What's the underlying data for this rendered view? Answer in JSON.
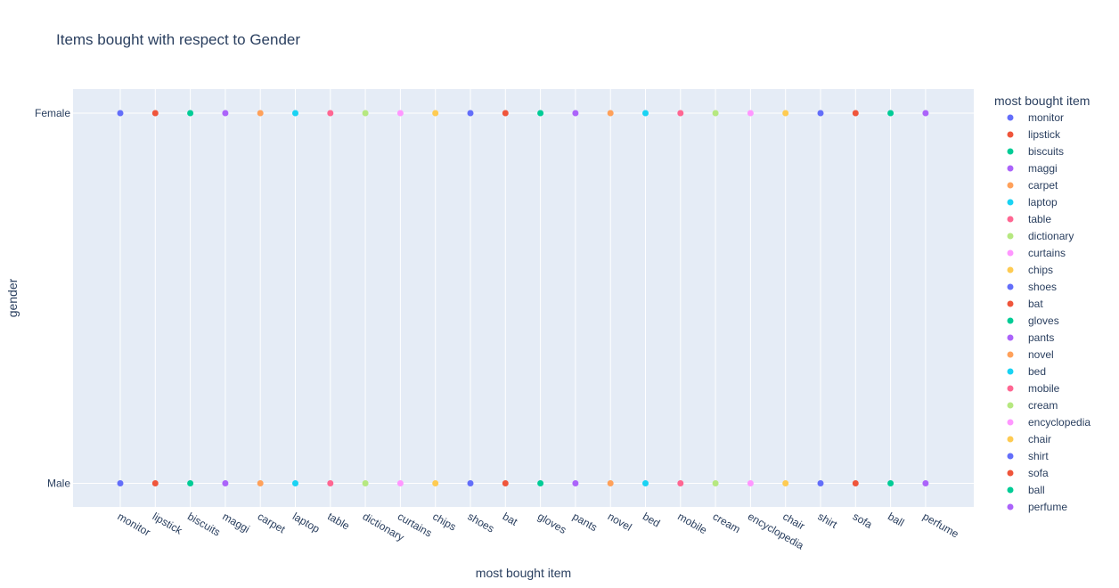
{
  "chart_data": {
    "type": "scatter",
    "title": "Items bought with respect to Gender",
    "xlabel": "most bought item",
    "ylabel": "gender",
    "categories": [
      "monitor",
      "lipstick",
      "biscuits",
      "maggi",
      "carpet",
      "laptop",
      "table",
      "dictionary",
      "curtains",
      "chips",
      "shoes",
      "bat",
      "gloves",
      "pants",
      "novel",
      "bed",
      "mobile",
      "cream",
      "encyclopedia",
      "chair",
      "shirt",
      "sofa",
      "ball",
      "perfume"
    ],
    "y_categories": [
      "Female",
      "Male"
    ],
    "legend_title": "most bought item",
    "legend_placement": "right",
    "grid": true,
    "series": [
      {
        "name": "monitor",
        "color": "#636efa",
        "x": [
          "monitor",
          "monitor"
        ],
        "y": [
          "Female",
          "Male"
        ]
      },
      {
        "name": "lipstick",
        "color": "#ef553b",
        "x": [
          "lipstick",
          "lipstick"
        ],
        "y": [
          "Female",
          "Male"
        ]
      },
      {
        "name": "biscuits",
        "color": "#00cc96",
        "x": [
          "biscuits",
          "biscuits"
        ],
        "y": [
          "Female",
          "Male"
        ]
      },
      {
        "name": "maggi",
        "color": "#ab63fa",
        "x": [
          "maggi",
          "maggi"
        ],
        "y": [
          "Female",
          "Male"
        ]
      },
      {
        "name": "carpet",
        "color": "#ffa15a",
        "x": [
          "carpet",
          "carpet"
        ],
        "y": [
          "Female",
          "Male"
        ]
      },
      {
        "name": "laptop",
        "color": "#19d3f3",
        "x": [
          "laptop",
          "laptop"
        ],
        "y": [
          "Female",
          "Male"
        ]
      },
      {
        "name": "table",
        "color": "#ff6692",
        "x": [
          "table",
          "table"
        ],
        "y": [
          "Female",
          "Male"
        ]
      },
      {
        "name": "dictionary",
        "color": "#b6e880",
        "x": [
          "dictionary",
          "dictionary"
        ],
        "y": [
          "Female",
          "Male"
        ]
      },
      {
        "name": "curtains",
        "color": "#ff97ff",
        "x": [
          "curtains",
          "curtains"
        ],
        "y": [
          "Female",
          "Male"
        ]
      },
      {
        "name": "chips",
        "color": "#fecb52",
        "x": [
          "chips",
          "chips"
        ],
        "y": [
          "Female",
          "Male"
        ]
      },
      {
        "name": "shoes",
        "color": "#636efa",
        "x": [
          "shoes",
          "shoes"
        ],
        "y": [
          "Female",
          "Male"
        ]
      },
      {
        "name": "bat",
        "color": "#ef553b",
        "x": [
          "bat",
          "bat"
        ],
        "y": [
          "Female",
          "Male"
        ]
      },
      {
        "name": "gloves",
        "color": "#00cc96",
        "x": [
          "gloves",
          "gloves"
        ],
        "y": [
          "Female",
          "Male"
        ]
      },
      {
        "name": "pants",
        "color": "#ab63fa",
        "x": [
          "pants",
          "pants"
        ],
        "y": [
          "Female",
          "Male"
        ]
      },
      {
        "name": "novel",
        "color": "#ffa15a",
        "x": [
          "novel",
          "novel"
        ],
        "y": [
          "Female",
          "Male"
        ]
      },
      {
        "name": "bed",
        "color": "#19d3f3",
        "x": [
          "bed",
          "bed"
        ],
        "y": [
          "Female",
          "Male"
        ]
      },
      {
        "name": "mobile",
        "color": "#ff6692",
        "x": [
          "mobile",
          "mobile"
        ],
        "y": [
          "Female",
          "Male"
        ]
      },
      {
        "name": "cream",
        "color": "#b6e880",
        "x": [
          "cream",
          "cream"
        ],
        "y": [
          "Female",
          "Male"
        ]
      },
      {
        "name": "encyclopedia",
        "color": "#ff97ff",
        "x": [
          "encyclopedia",
          "encyclopedia"
        ],
        "y": [
          "Female",
          "Male"
        ]
      },
      {
        "name": "chair",
        "color": "#fecb52",
        "x": [
          "chair",
          "chair"
        ],
        "y": [
          "Female",
          "Male"
        ]
      },
      {
        "name": "shirt",
        "color": "#636efa",
        "x": [
          "shirt",
          "shirt"
        ],
        "y": [
          "Female",
          "Male"
        ]
      },
      {
        "name": "sofa",
        "color": "#ef553b",
        "x": [
          "sofa",
          "sofa"
        ],
        "y": [
          "Female",
          "Male"
        ]
      },
      {
        "name": "ball",
        "color": "#00cc96",
        "x": [
          "ball",
          "ball"
        ],
        "y": [
          "Female",
          "Male"
        ]
      },
      {
        "name": "perfume",
        "color": "#ab63fa",
        "x": [
          "perfume",
          "perfume"
        ],
        "y": [
          "Female",
          "Male"
        ]
      }
    ]
  }
}
